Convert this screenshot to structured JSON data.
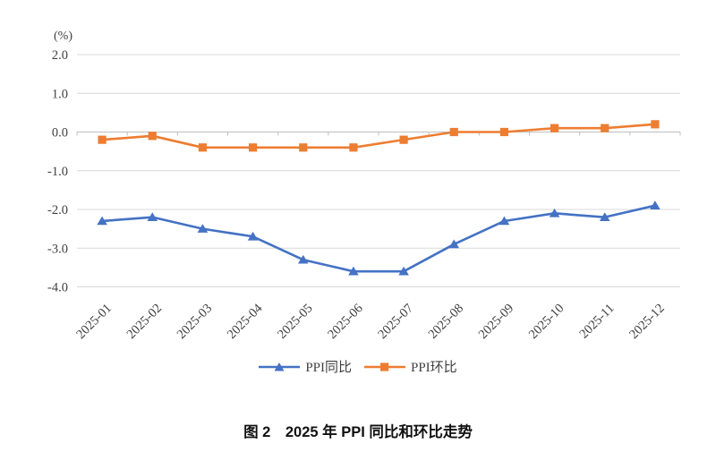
{
  "chart_data": {
    "type": "line",
    "title": "图 2　2025 年 PPI 同比和环比走势",
    "unit_label": "(%)",
    "categories": [
      "2025-01",
      "2025-02",
      "2025-03",
      "2025-04",
      "2025-05",
      "2025-06",
      "2025-07",
      "2025-08",
      "2025-09",
      "2025-10",
      "2025-11",
      "2025-12"
    ],
    "series": [
      {
        "name": "PPI同比",
        "marker": "triangle",
        "color": "#4472C4",
        "values": [
          -2.3,
          -2.2,
          -2.5,
          -2.7,
          -3.3,
          -3.6,
          -3.6,
          -2.9,
          -2.3,
          -2.1,
          -2.2,
          -1.9
        ]
      },
      {
        "name": "PPI环比",
        "marker": "square",
        "color": "#ED7D31",
        "values": [
          -0.2,
          -0.1,
          -0.4,
          -0.4,
          -0.4,
          -0.4,
          -0.2,
          0.0,
          0.0,
          0.1,
          0.1,
          0.2
        ]
      }
    ],
    "ylim": [
      -4.0,
      2.0
    ],
    "ytick_step": 1.0,
    "ytick_labels": [
      "2.0",
      "1.0",
      "0.0",
      "-1.0",
      "-2.0",
      "-3.0",
      "-4.0"
    ],
    "grid": "horizontal",
    "legend_position": "bottom",
    "colors": {
      "gridline": "#D9D9D9",
      "axis": "#BFBFBF",
      "tick_text": "#404040"
    }
  }
}
